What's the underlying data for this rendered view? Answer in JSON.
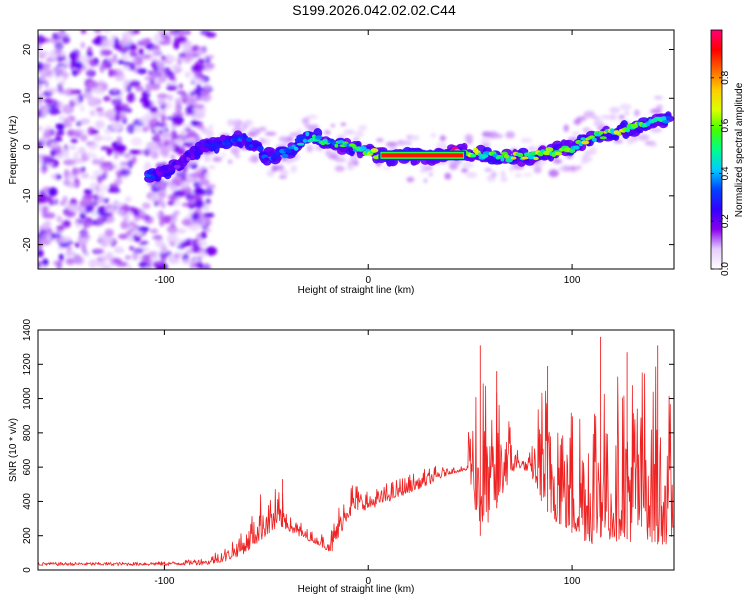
{
  "figure": {
    "title": "S199.2026.042.02.02.C44"
  },
  "chart_data": [
    {
      "type": "heatmap",
      "name": "spectrogram",
      "xlabel": "Height of straight line (km)",
      "ylabel": "Frequency (Hz)",
      "xlim": [
        -162,
        150
      ],
      "ylim": [
        -25,
        24
      ],
      "xticks": [
        -100,
        0,
        100
      ],
      "yticks": [
        -20,
        -10,
        0,
        10,
        20
      ],
      "colorbar": {
        "label": "Normalized spectral amplitude",
        "range": [
          0,
          1
        ],
        "ticks": [
          0.0,
          0.2,
          0.4,
          0.6,
          0.8
        ],
        "tick_labels": [
          "0.0",
          "0.2",
          "0.4",
          "0.6",
          "0.8"
        ],
        "colors": [
          "#ffffff",
          "#e6ccff",
          "#8800ee",
          "#3300ff",
          "#0044ff",
          "#00ccff",
          "#00ff88",
          "#44ff00",
          "#ddff00",
          "#ffcc00",
          "#ff6600",
          "#ff0000",
          "#ff0077"
        ]
      },
      "ridge": {
        "x": [
          -108,
          -100,
          -90,
          -80,
          -70,
          -60,
          -50,
          -40,
          -30,
          -25,
          -20,
          -10,
          0,
          10,
          20,
          30,
          40,
          50,
          60,
          70,
          80,
          90,
          100,
          110,
          120,
          130,
          140,
          148
        ],
        "freq": [
          -6,
          -5,
          -3,
          0,
          1,
          2,
          -2,
          -1,
          2,
          2,
          1,
          0,
          -1,
          -2,
          -2,
          -2,
          -1,
          -1,
          -2,
          -2,
          -2,
          -1,
          0,
          2,
          3,
          4,
          5,
          6
        ],
        "amplitude": [
          0.3,
          0.2,
          0.2,
          0.25,
          0.3,
          0.3,
          0.3,
          0.35,
          0.45,
          0.5,
          0.45,
          0.5,
          0.55,
          0.95,
          0.95,
          0.95,
          0.95,
          0.6,
          0.55,
          0.6,
          0.6,
          0.55,
          0.55,
          0.6,
          0.6,
          0.6,
          0.5,
          0.45
        ]
      }
    },
    {
      "type": "line",
      "name": "snr",
      "xlabel": "Height of straight line (km)",
      "ylabel": "SNR (10 * v/v)",
      "xlim": [
        -162,
        150
      ],
      "ylim": [
        0,
        1400
      ],
      "xticks": [
        -100,
        0,
        100
      ],
      "yticks": [
        0,
        200,
        400,
        600,
        800,
        1000,
        1200,
        1400
      ],
      "color": "#ee2222",
      "envelope": {
        "x": [
          -162,
          -120,
          -95,
          -80,
          -70,
          -60,
          -50,
          -42,
          -35,
          -25,
          -18,
          -10,
          -5,
          0,
          10,
          20,
          30,
          40,
          48,
          50,
          55,
          60,
          65,
          70,
          75,
          80,
          85,
          90,
          95,
          100,
          110,
          115,
          120,
          125,
          130,
          135,
          140,
          145,
          150
        ],
        "base": [
          25,
          25,
          25,
          30,
          50,
          100,
          200,
          250,
          200,
          150,
          100,
          300,
          350,
          350,
          400,
          450,
          500,
          560,
          580,
          500,
          200,
          300,
          400,
          550,
          600,
          550,
          400,
          300,
          250,
          200,
          150,
          200,
          150,
          200,
          150,
          200,
          150,
          150,
          150
        ],
        "peak": [
          45,
          45,
          50,
          70,
          150,
          300,
          520,
          450,
          300,
          200,
          250,
          550,
          500,
          480,
          520,
          560,
          600,
          620,
          600,
          1200,
          1300,
          1000,
          1100,
          900,
          650,
          700,
          1100,
          1200,
          1100,
          1000,
          1150,
          1360,
          1150,
          1300,
          1200,
          1250,
          1300,
          1100,
          1000
        ]
      },
      "peaks": [
        {
          "x": -42,
          "y": 530
        },
        {
          "x": 55,
          "y": 1310
        },
        {
          "x": 63,
          "y": 1160
        },
        {
          "x": 88,
          "y": 1190
        },
        {
          "x": 114,
          "y": 1360
        },
        {
          "x": 127,
          "y": 1270
        },
        {
          "x": 142,
          "y": 1310
        }
      ]
    }
  ]
}
